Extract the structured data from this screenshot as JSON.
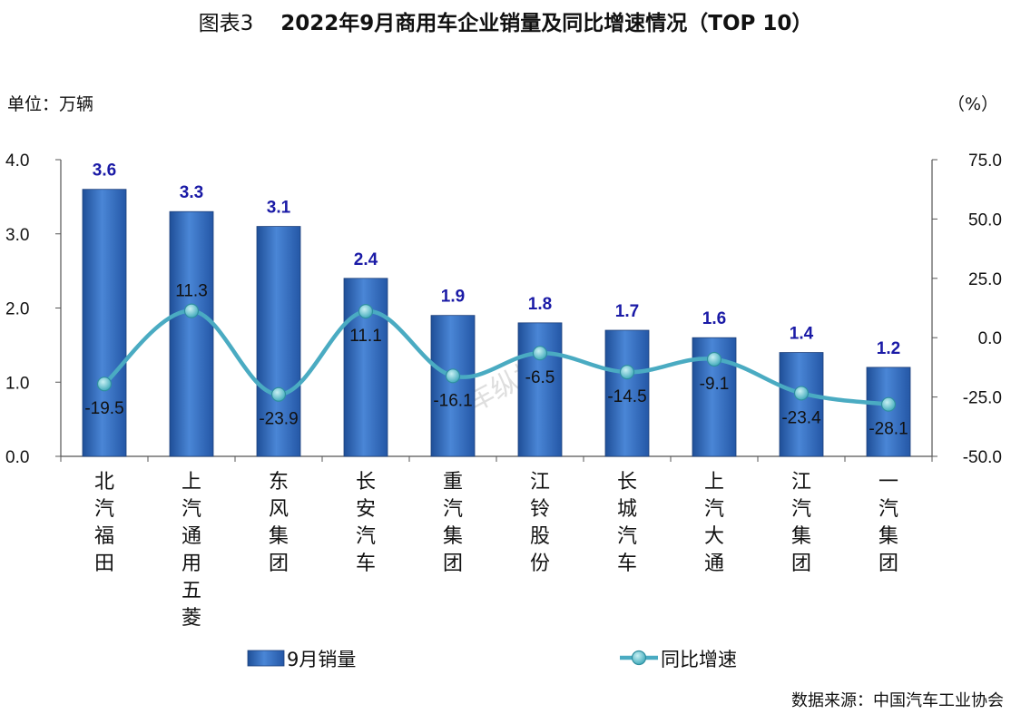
{
  "title": {
    "prefix": "图表3",
    "main": "2022年9月商用车企业销量及同比增速情况（TOP 10）"
  },
  "left_unit": "单位：万辆",
  "right_unit": "（%）",
  "source": "数据来源：中国汽车工业协会",
  "watermark": "汽车纵横",
  "colors": {
    "bar": "#3a72c4",
    "bar_dark": "#1f4f98",
    "line": "#4aabc2",
    "marker": "#5fc3cf",
    "bar_label": "#1a1aa6"
  },
  "chart_data": {
    "type": "bar",
    "categories": [
      "北汽福田",
      "上汽通用五菱",
      "东风集团",
      "长安汽车",
      "重汽集团",
      "江铃股份",
      "长城汽车",
      "上汽大通",
      "江汽集团",
      "一汽集团"
    ],
    "series": [
      {
        "name": "9月销量",
        "type": "bar",
        "axis": "left",
        "values": [
          3.6,
          3.3,
          3.1,
          2.4,
          1.9,
          1.8,
          1.7,
          1.6,
          1.4,
          1.2
        ]
      },
      {
        "name": "同比增速",
        "type": "line",
        "axis": "right",
        "values": [
          -19.5,
          11.3,
          -23.9,
          11.1,
          -16.1,
          -6.5,
          -14.5,
          -9.1,
          -23.4,
          -28.1
        ]
      }
    ],
    "y_left": {
      "range": [
        0,
        4.0
      ],
      "ticks": [
        "0.0",
        "1.0",
        "2.0",
        "3.0",
        "4.0"
      ]
    },
    "y_right": {
      "range": [
        -50,
        75
      ],
      "ticks": [
        "-50.0",
        "-25.0",
        "0.0",
        "25.0",
        "50.0",
        "75.0"
      ]
    },
    "legend_position": "bottom",
    "grid": false
  }
}
